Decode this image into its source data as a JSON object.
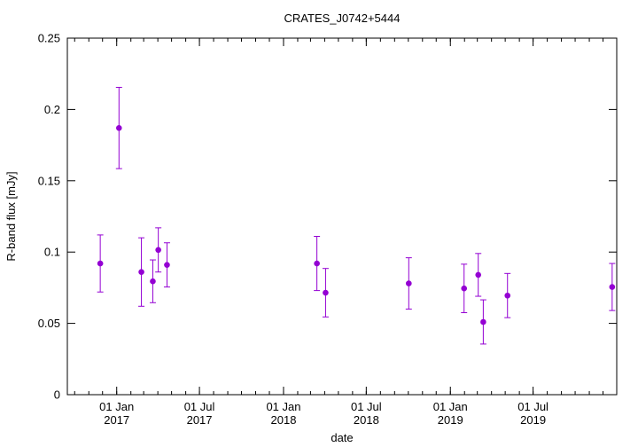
{
  "chart_data": {
    "type": "scatter",
    "title": "CRATES_J0742+5444",
    "xlabel": "date",
    "ylabel": "R-band flux [mJy]",
    "xlim": [
      "2016-09-15",
      "2019-12-31"
    ],
    "ylim": [
      0,
      0.25
    ],
    "yticks": [
      "0",
      "0.05",
      "0.1",
      "0.15",
      "0.2",
      "0.25"
    ],
    "xticks": [
      {
        "date": "2017-01-01",
        "line1": "01 Jan",
        "line2": "2017"
      },
      {
        "date": "2017-07-01",
        "line1": "01 Jul",
        "line2": "2017"
      },
      {
        "date": "2018-01-01",
        "line1": "01 Jan",
        "line2": "2018"
      },
      {
        "date": "2018-07-01",
        "line1": "01 Jul",
        "line2": "2018"
      },
      {
        "date": "2019-01-01",
        "line1": "01 Jan",
        "line2": "2019"
      },
      {
        "date": "2019-07-01",
        "line1": "01 Jul",
        "line2": "2019"
      }
    ],
    "marker_color": "#9400d3",
    "grid": false,
    "points": [
      {
        "date": "2016-11-26",
        "y": 0.092,
        "err": 0.02
      },
      {
        "date": "2017-01-06",
        "y": 0.187,
        "err": 0.0285
      },
      {
        "date": "2017-02-24",
        "y": 0.086,
        "err": 0.024
      },
      {
        "date": "2017-03-21",
        "y": 0.0795,
        "err": 0.015
      },
      {
        "date": "2017-04-02",
        "y": 0.1015,
        "err": 0.0155
      },
      {
        "date": "2017-04-21",
        "y": 0.091,
        "err": 0.0155
      },
      {
        "date": "2018-03-15",
        "y": 0.092,
        "err": 0.019
      },
      {
        "date": "2018-04-03",
        "y": 0.0715,
        "err": 0.017
      },
      {
        "date": "2018-10-02",
        "y": 0.078,
        "err": 0.018
      },
      {
        "date": "2019-01-31",
        "y": 0.0745,
        "err": 0.017
      },
      {
        "date": "2019-03-03",
        "y": 0.084,
        "err": 0.015
      },
      {
        "date": "2019-03-14",
        "y": 0.051,
        "err": 0.0155
      },
      {
        "date": "2019-05-06",
        "y": 0.0695,
        "err": 0.0155
      },
      {
        "date": "2019-12-21",
        "y": 0.0755,
        "err": 0.0165
      }
    ]
  }
}
